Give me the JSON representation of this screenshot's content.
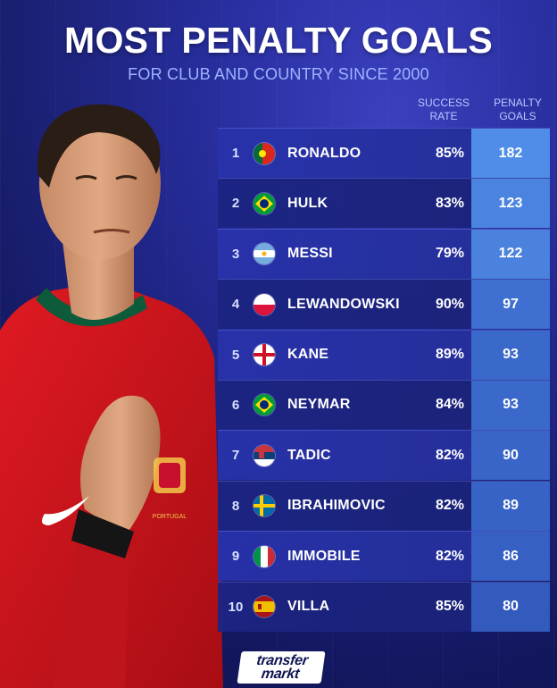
{
  "header": {
    "title": "MOST PENALTY GOALS",
    "subtitle": "FOR CLUB AND COUNTRY SINCE 2000"
  },
  "columns": {
    "rate_line1": "SUCCESS",
    "rate_line2": "RATE",
    "goals_line1": "PENALTY",
    "goals_line2": "GOALS"
  },
  "rows": [
    {
      "rank": "1",
      "name": "RONALDO",
      "rate": "85%",
      "goals": "182",
      "flag": "portugal",
      "goals_color": "#4f8de8"
    },
    {
      "rank": "2",
      "name": "HULK",
      "rate": "83%",
      "goals": "123",
      "flag": "brazil",
      "goals_color": "#4a84e0"
    },
    {
      "rank": "3",
      "name": "MESSI",
      "rate": "79%",
      "goals": "122",
      "flag": "argentina",
      "goals_color": "#4a82de"
    },
    {
      "rank": "4",
      "name": "LEWANDOWSKI",
      "rate": "90%",
      "goals": "97",
      "flag": "poland",
      "goals_color": "#3f6fd0"
    },
    {
      "rank": "5",
      "name": "KANE",
      "rate": "89%",
      "goals": "93",
      "flag": "england",
      "goals_color": "#3b69cb"
    },
    {
      "rank": "6",
      "name": "NEYMAR",
      "rate": "84%",
      "goals": "93",
      "flag": "brazil",
      "goals_color": "#3b69cb"
    },
    {
      "rank": "7",
      "name": "TADIC",
      "rate": "82%",
      "goals": "90",
      "flag": "serbia",
      "goals_color": "#3965c8"
    },
    {
      "rank": "8",
      "name": "IBRAHIMOVIC",
      "rate": "82%",
      "goals": "89",
      "flag": "sweden",
      "goals_color": "#3863c6"
    },
    {
      "rank": "9",
      "name": "IMMOBILE",
      "rate": "82%",
      "goals": "86",
      "flag": "italy",
      "goals_color": "#3660c3"
    },
    {
      "rank": "10",
      "name": "VILLA",
      "rate": "85%",
      "goals": "80",
      "flag": "spain",
      "goals_color": "#335bbe"
    }
  ],
  "logo": {
    "line1": "transfer",
    "line2": "markt"
  }
}
